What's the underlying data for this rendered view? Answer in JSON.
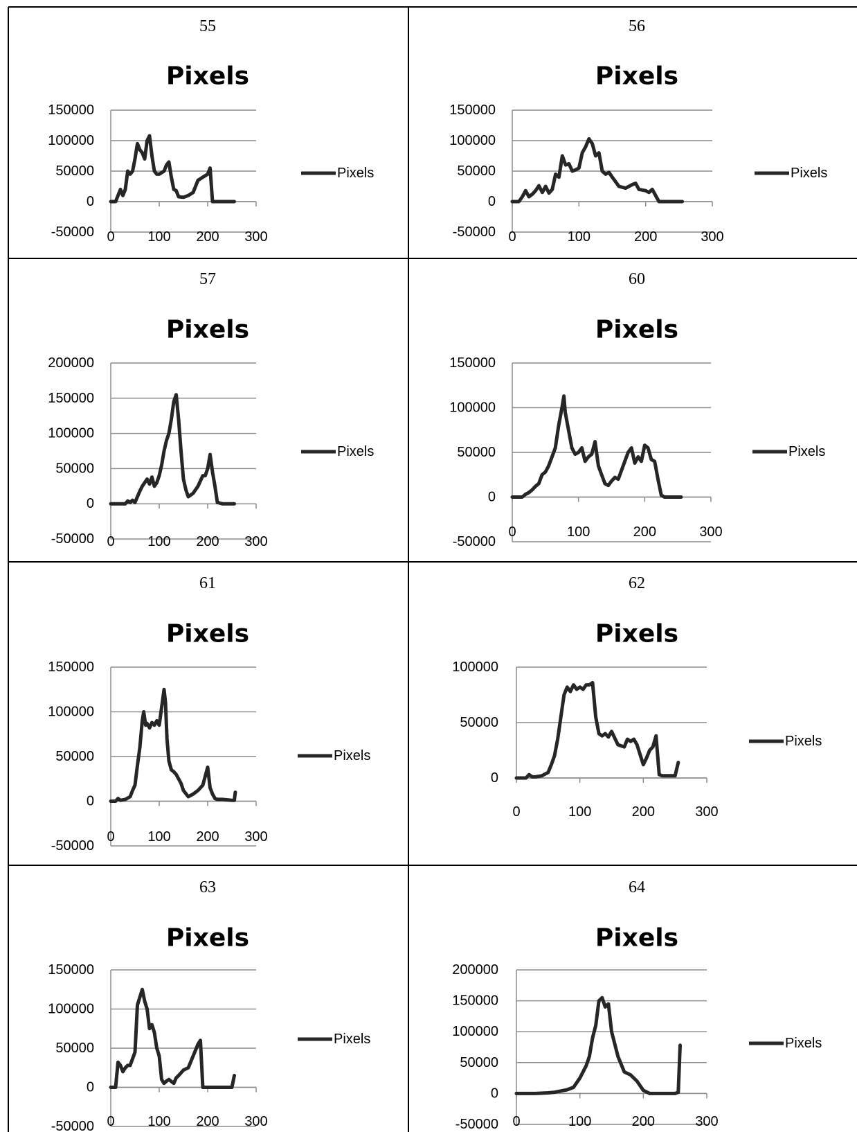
{
  "chart_data": [
    {
      "type": "line",
      "label": "55",
      "title": "Pixels",
      "legend": "Pixels",
      "legend_position": "right",
      "ylim": [
        -50000,
        150000
      ],
      "yticks": [
        -50000,
        0,
        50000,
        100000,
        150000
      ],
      "yticks_labels": [
        "-50000",
        "0",
        "50000",
        "100000",
        "150000"
      ],
      "xlim": [
        0,
        300
      ],
      "xticks": [
        0,
        100,
        200,
        300
      ],
      "xticks_labels": [
        "0",
        "100",
        "200",
        "300"
      ],
      "grid": true,
      "series": [
        {
          "name": "Pixels",
          "x": [
            0,
            10,
            15,
            20,
            25,
            30,
            35,
            40,
            45,
            50,
            55,
            60,
            65,
            70,
            75,
            80,
            85,
            90,
            95,
            100,
            110,
            115,
            120,
            125,
            130,
            135,
            140,
            150,
            160,
            170,
            180,
            190,
            200,
            205,
            210,
            220,
            230,
            255
          ],
          "y": [
            0,
            0,
            10000,
            20000,
            10000,
            20000,
            50000,
            45000,
            50000,
            70000,
            95000,
            85000,
            80000,
            70000,
            100000,
            108000,
            75000,
            50000,
            45000,
            45000,
            50000,
            60000,
            65000,
            40000,
            20000,
            18000,
            8000,
            7000,
            10000,
            15000,
            35000,
            40000,
            45000,
            55000,
            0,
            0,
            0,
            0
          ]
        }
      ]
    },
    {
      "type": "line",
      "label": "56",
      "title": "Pixels",
      "legend": "Pixels",
      "legend_position": "right",
      "ylim": [
        -50000,
        150000
      ],
      "yticks": [
        -50000,
        0,
        50000,
        100000,
        150000
      ],
      "yticks_labels": [
        "-50000",
        "0",
        "50000",
        "100000",
        "150000"
      ],
      "xlim": [
        0,
        300
      ],
      "xticks": [
        0,
        100,
        200,
        300
      ],
      "xticks_labels": [
        "0",
        "100",
        "200",
        "300"
      ],
      "grid": true,
      "series": [
        {
          "name": "Pixels",
          "x": [
            0,
            10,
            15,
            20,
            25,
            30,
            35,
            40,
            45,
            50,
            55,
            60,
            65,
            70,
            75,
            80,
            85,
            90,
            95,
            100,
            105,
            110,
            115,
            120,
            125,
            130,
            135,
            140,
            145,
            150,
            160,
            170,
            180,
            185,
            190,
            200,
            205,
            210,
            220,
            255
          ],
          "y": [
            0,
            0,
            8000,
            18000,
            8000,
            12000,
            18000,
            26000,
            15000,
            25000,
            14000,
            20000,
            45000,
            40000,
            75000,
            60000,
            62000,
            50000,
            52000,
            55000,
            80000,
            90000,
            103000,
            95000,
            75000,
            80000,
            50000,
            45000,
            48000,
            40000,
            25000,
            22000,
            28000,
            30000,
            20000,
            18000,
            15000,
            20000,
            0,
            0
          ]
        }
      ]
    },
    {
      "type": "line",
      "label": "57",
      "title": "Pixels",
      "legend": "Pixels",
      "legend_position": "right",
      "ylim": [
        -50000,
        200000
      ],
      "yticks": [
        -50000,
        0,
        50000,
        100000,
        150000,
        200000
      ],
      "yticks_labels": [
        "-50000",
        "0",
        "50000",
        "100000",
        "150000",
        "200000"
      ],
      "xlim": [
        0,
        300
      ],
      "xticks": [
        0,
        100,
        200,
        300
      ],
      "xticks_labels": [
        "0",
        "100",
        "200",
        "300"
      ],
      "grid": true,
      "series": [
        {
          "name": "Pixels",
          "x": [
            0,
            20,
            30,
            35,
            40,
            45,
            50,
            55,
            60,
            65,
            70,
            75,
            80,
            85,
            90,
            95,
            100,
            105,
            110,
            115,
            120,
            125,
            130,
            135,
            140,
            145,
            150,
            155,
            160,
            170,
            180,
            190,
            195,
            200,
            205,
            210,
            215,
            220,
            230,
            240,
            255
          ],
          "y": [
            0,
            0,
            0,
            4000,
            2000,
            5000,
            2000,
            10000,
            18000,
            25000,
            30000,
            35000,
            28000,
            38000,
            25000,
            30000,
            40000,
            55000,
            75000,
            90000,
            100000,
            120000,
            145000,
            155000,
            120000,
            75000,
            35000,
            20000,
            10000,
            15000,
            25000,
            40000,
            40000,
            50000,
            70000,
            45000,
            25000,
            2000,
            0,
            0,
            0
          ]
        }
      ]
    },
    {
      "type": "line",
      "label": "60",
      "title": "Pixels",
      "legend": "Pixels",
      "legend_position": "right",
      "ylim": [
        -50000,
        150000
      ],
      "yticks": [
        -50000,
        0,
        50000,
        100000,
        150000
      ],
      "yticks_labels": [
        "-50000",
        "0",
        "50000",
        "100000",
        "150000"
      ],
      "xlim": [
        0,
        300
      ],
      "xticks": [
        0,
        100,
        200,
        300
      ],
      "xticks_labels": [
        "0",
        "100",
        "200",
        "300"
      ],
      "grid": true,
      "series": [
        {
          "name": "Pixels",
          "x": [
            0,
            15,
            20,
            25,
            30,
            35,
            40,
            45,
            50,
            55,
            60,
            65,
            70,
            75,
            78,
            80,
            85,
            90,
            95,
            100,
            105,
            110,
            115,
            120,
            125,
            130,
            135,
            140,
            145,
            150,
            155,
            160,
            170,
            175,
            180,
            185,
            190,
            195,
            200,
            205,
            210,
            215,
            220,
            225,
            230,
            255
          ],
          "y": [
            0,
            0,
            3000,
            5000,
            8000,
            12000,
            15000,
            25000,
            28000,
            35000,
            45000,
            55000,
            80000,
            100000,
            113000,
            95000,
            75000,
            55000,
            48000,
            50000,
            55000,
            40000,
            45000,
            48000,
            62000,
            35000,
            25000,
            15000,
            13000,
            18000,
            22000,
            20000,
            40000,
            50000,
            55000,
            38000,
            45000,
            40000,
            58000,
            55000,
            42000,
            40000,
            20000,
            2000,
            0,
            0
          ]
        }
      ]
    },
    {
      "type": "line",
      "label": "61",
      "title": "Pixels",
      "legend": "Pixels",
      "legend_position": "right",
      "ylim": [
        -50000,
        150000
      ],
      "yticks": [
        -50000,
        0,
        50000,
        100000,
        150000
      ],
      "yticks_labels": [
        "-50000",
        "0",
        "50000",
        "100000",
        "150000"
      ],
      "xlim": [
        0,
        300
      ],
      "xticks": [
        0,
        100,
        200,
        300
      ],
      "xticks_labels": [
        "0",
        "100",
        "200",
        "300"
      ],
      "grid": true,
      "series": [
        {
          "name": "Pixels",
          "x": [
            0,
            10,
            15,
            20,
            30,
            40,
            45,
            50,
            55,
            60,
            65,
            68,
            72,
            75,
            80,
            85,
            90,
            95,
            100,
            105,
            110,
            113,
            116,
            120,
            125,
            130,
            135,
            140,
            145,
            150,
            160,
            170,
            180,
            190,
            200,
            205,
            210,
            215,
            220,
            230,
            250,
            255,
            257
          ],
          "y": [
            0,
            0,
            3000,
            1000,
            2000,
            5000,
            12000,
            18000,
            40000,
            60000,
            90000,
            100000,
            85000,
            87000,
            82000,
            88000,
            85000,
            90000,
            85000,
            105000,
            125000,
            110000,
            70000,
            45000,
            35000,
            33000,
            30000,
            25000,
            20000,
            12000,
            5000,
            8000,
            12000,
            18000,
            38000,
            15000,
            8000,
            3000,
            2000,
            2000,
            1000,
            1000,
            10000
          ]
        }
      ]
    },
    {
      "type": "line",
      "label": "62",
      "title": "Pixels",
      "legend": "Pixels",
      "legend_position": "right",
      "ylim": [
        0,
        100000
      ],
      "yticks": [
        0,
        50000,
        100000
      ],
      "yticks_labels": [
        "0",
        "50000",
        "100000"
      ],
      "xlim": [
        0,
        300
      ],
      "xticks": [
        0,
        100,
        200,
        300
      ],
      "xticks_labels": [
        "0",
        "100",
        "200",
        "300"
      ],
      "grid": true,
      "series": [
        {
          "name": "Pixels",
          "x": [
            0,
            15,
            20,
            25,
            30,
            40,
            50,
            55,
            60,
            65,
            70,
            75,
            80,
            85,
            90,
            95,
            100,
            105,
            110,
            115,
            120,
            125,
            130,
            135,
            140,
            145,
            150,
            155,
            160,
            170,
            175,
            180,
            185,
            190,
            200,
            205,
            210,
            215,
            220,
            225,
            230,
            240,
            250,
            255
          ],
          "y": [
            0,
            0,
            3000,
            1000,
            1000,
            2000,
            5000,
            12000,
            20000,
            35000,
            55000,
            75000,
            82000,
            78000,
            84000,
            80000,
            82000,
            80000,
            84000,
            84000,
            86000,
            55000,
            40000,
            38000,
            40000,
            37000,
            42000,
            36000,
            30000,
            28000,
            35000,
            33000,
            35000,
            30000,
            12000,
            18000,
            25000,
            28000,
            38000,
            3000,
            2000,
            2000,
            2000,
            14000
          ]
        }
      ]
    },
    {
      "type": "line",
      "label": "63",
      "title": "Pixels",
      "legend": "Pixels",
      "legend_position": "right",
      "ylim": [
        -50000,
        150000
      ],
      "yticks": [
        -50000,
        0,
        50000,
        100000,
        150000
      ],
      "yticks_labels": [
        "-50000",
        "0",
        "50000",
        "100000",
        "150000"
      ],
      "xlim": [
        0,
        300
      ],
      "xticks": [
        0,
        100,
        200,
        300
      ],
      "xticks_labels": [
        "0",
        "100",
        "200",
        "300"
      ],
      "grid": true,
      "series": [
        {
          "name": "Pixels",
          "x": [
            0,
            10,
            15,
            20,
            25,
            30,
            35,
            40,
            50,
            55,
            60,
            65,
            70,
            75,
            80,
            85,
            90,
            95,
            100,
            105,
            110,
            115,
            120,
            130,
            135,
            140,
            150,
            160,
            170,
            180,
            185,
            190,
            195,
            200,
            210,
            220,
            250,
            255
          ],
          "y": [
            0,
            0,
            32000,
            28000,
            20000,
            25000,
            28000,
            28000,
            45000,
            105000,
            115000,
            125000,
            110000,
            100000,
            75000,
            80000,
            70000,
            50000,
            40000,
            10000,
            5000,
            8000,
            10000,
            5000,
            12000,
            15000,
            22000,
            25000,
            40000,
            55000,
            60000,
            0,
            0,
            0,
            0,
            0,
            0,
            15000
          ]
        }
      ]
    },
    {
      "type": "line",
      "label": "64",
      "title": "Pixels",
      "legend": "Pixels",
      "legend_position": "right",
      "ylim": [
        -50000,
        200000
      ],
      "yticks": [
        -50000,
        0,
        50000,
        100000,
        150000,
        200000
      ],
      "yticks_labels": [
        "-50000",
        "0",
        "50000",
        "100000",
        "150000",
        "200000"
      ],
      "xlim": [
        0,
        300
      ],
      "xticks": [
        0,
        100,
        200,
        300
      ],
      "xticks_labels": [
        "0",
        "100",
        "200",
        "300"
      ],
      "grid": true,
      "series": [
        {
          "name": "Pixels",
          "x": [
            0,
            30,
            50,
            60,
            70,
            80,
            90,
            100,
            110,
            115,
            120,
            125,
            130,
            135,
            140,
            145,
            150,
            155,
            160,
            170,
            180,
            190,
            200,
            210,
            220,
            240,
            250,
            255,
            258
          ],
          "y": [
            0,
            0,
            1000,
            2000,
            4000,
            6000,
            10000,
            25000,
            45000,
            60000,
            90000,
            110000,
            150000,
            155000,
            140000,
            145000,
            100000,
            80000,
            60000,
            35000,
            30000,
            20000,
            5000,
            0,
            0,
            0,
            0,
            2000,
            78000
          ]
        }
      ]
    }
  ]
}
